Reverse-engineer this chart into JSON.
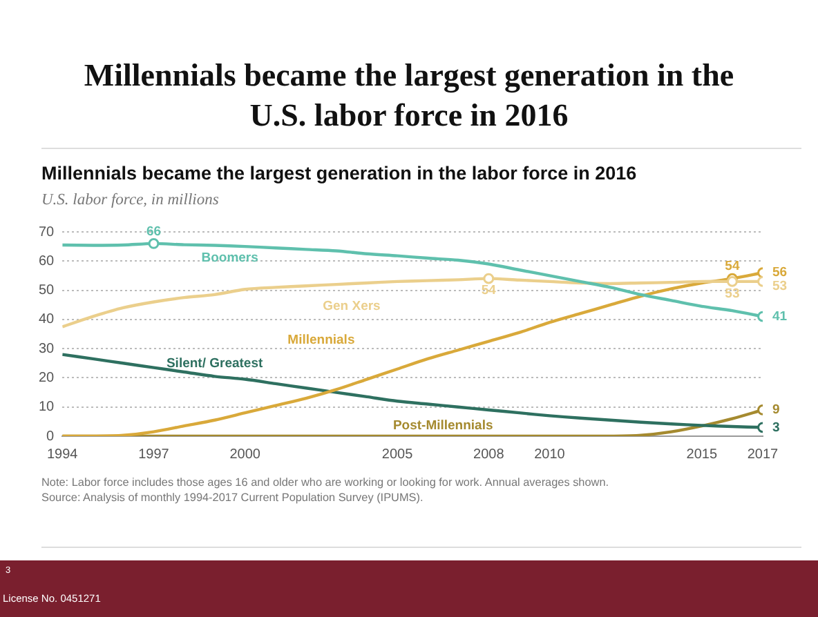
{
  "chart_data": {
    "type": "line",
    "title": "Millennials became the largest generation in the U.S. labor force in 2016",
    "subtitle": "Millennials became the largest generation in the labor force in 2016",
    "ylabel": "U.S. labor force, in millions",
    "x": [
      1994,
      1995,
      1996,
      1997,
      1998,
      1999,
      2000,
      2001,
      2002,
      2003,
      2004,
      2005,
      2006,
      2007,
      2008,
      2009,
      2010,
      2011,
      2012,
      2013,
      2014,
      2015,
      2016,
      2017
    ],
    "series": [
      {
        "name": "Boomers",
        "color": "#5fc0ad",
        "values": [
          65.5,
          65.4,
          65.5,
          66,
          65.6,
          65.4,
          65,
          64.5,
          64,
          63.5,
          62.5,
          61.8,
          61,
          60.3,
          59,
          57,
          55,
          53,
          51,
          48.5,
          46.5,
          44.5,
          43,
          41
        ],
        "value_labels": [
          null,
          null,
          null,
          "66",
          null,
          null,
          null,
          null,
          null,
          null,
          null,
          null,
          null,
          null,
          null,
          null,
          null,
          null,
          null,
          null,
          null,
          null,
          null,
          "41"
        ]
      },
      {
        "name": "Gen Xers",
        "color": "#ebcf8c",
        "values": [
          37.5,
          41,
          44,
          46,
          47.5,
          48.5,
          50.3,
          51,
          51.5,
          52,
          52.5,
          53,
          53.3,
          53.6,
          54,
          53.5,
          53,
          52.5,
          52.3,
          52.5,
          52.7,
          53,
          53,
          53
        ],
        "value_labels": [
          null,
          null,
          null,
          null,
          null,
          null,
          null,
          null,
          null,
          null,
          null,
          null,
          null,
          null,
          "54",
          null,
          null,
          null,
          null,
          null,
          null,
          null,
          "53",
          "53"
        ]
      },
      {
        "name": "Millennials",
        "color": "#d9a93a",
        "values": [
          0,
          0,
          0.3,
          1.5,
          3.5,
          5.5,
          8,
          10.5,
          13,
          16,
          19.5,
          23,
          26.5,
          29.5,
          32.5,
          35.5,
          39,
          42,
          45,
          48,
          50.5,
          52.5,
          54,
          56
        ],
        "value_labels": [
          null,
          null,
          null,
          null,
          null,
          null,
          null,
          null,
          null,
          null,
          null,
          null,
          null,
          null,
          null,
          null,
          null,
          null,
          null,
          null,
          null,
          null,
          "54",
          "56"
        ]
      },
      {
        "name": "Silent/ Greatest",
        "color": "#2e7060",
        "values": [
          28,
          26.5,
          25,
          23.5,
          22,
          20.5,
          19.5,
          18,
          16.5,
          15,
          13.5,
          12,
          11,
          10,
          9,
          8,
          7,
          6.2,
          5.5,
          4.8,
          4.2,
          3.7,
          3.3,
          3
        ],
        "value_labels": [
          null,
          null,
          null,
          null,
          null,
          null,
          null,
          null,
          null,
          null,
          null,
          null,
          null,
          null,
          null,
          null,
          null,
          null,
          null,
          null,
          null,
          null,
          null,
          "3"
        ]
      },
      {
        "name": "Post-Millennials",
        "color": "#a58a2f",
        "values": [
          0,
          0,
          0,
          0,
          0,
          0,
          0,
          0,
          0,
          0,
          0,
          0,
          0,
          0,
          0,
          0,
          0,
          0,
          0,
          0.3,
          1.5,
          3.5,
          6,
          9
        ],
        "value_labels": [
          null,
          null,
          null,
          null,
          null,
          null,
          null,
          null,
          null,
          null,
          null,
          null,
          null,
          null,
          null,
          null,
          null,
          null,
          null,
          null,
          null,
          null,
          null,
          "9"
        ]
      }
    ],
    "xlim": [
      1994,
      2017
    ],
    "xticks": [
      1994,
      1997,
      2000,
      2005,
      2008,
      2010,
      2015,
      2017
    ],
    "ylim": [
      0,
      70
    ],
    "yticks": [
      0,
      10,
      20,
      30,
      40,
      50,
      60,
      70
    ],
    "grid": "y",
    "legend": false,
    "annotations": [
      "Note: Labor force includes those ages 16 and older who are working or looking for work. Annual averages shown.",
      "Source: Analysis of monthly 1994-2017 Current Population Survey (IPUMS).",
      "3",
      "License No. 0451271"
    ]
  }
}
